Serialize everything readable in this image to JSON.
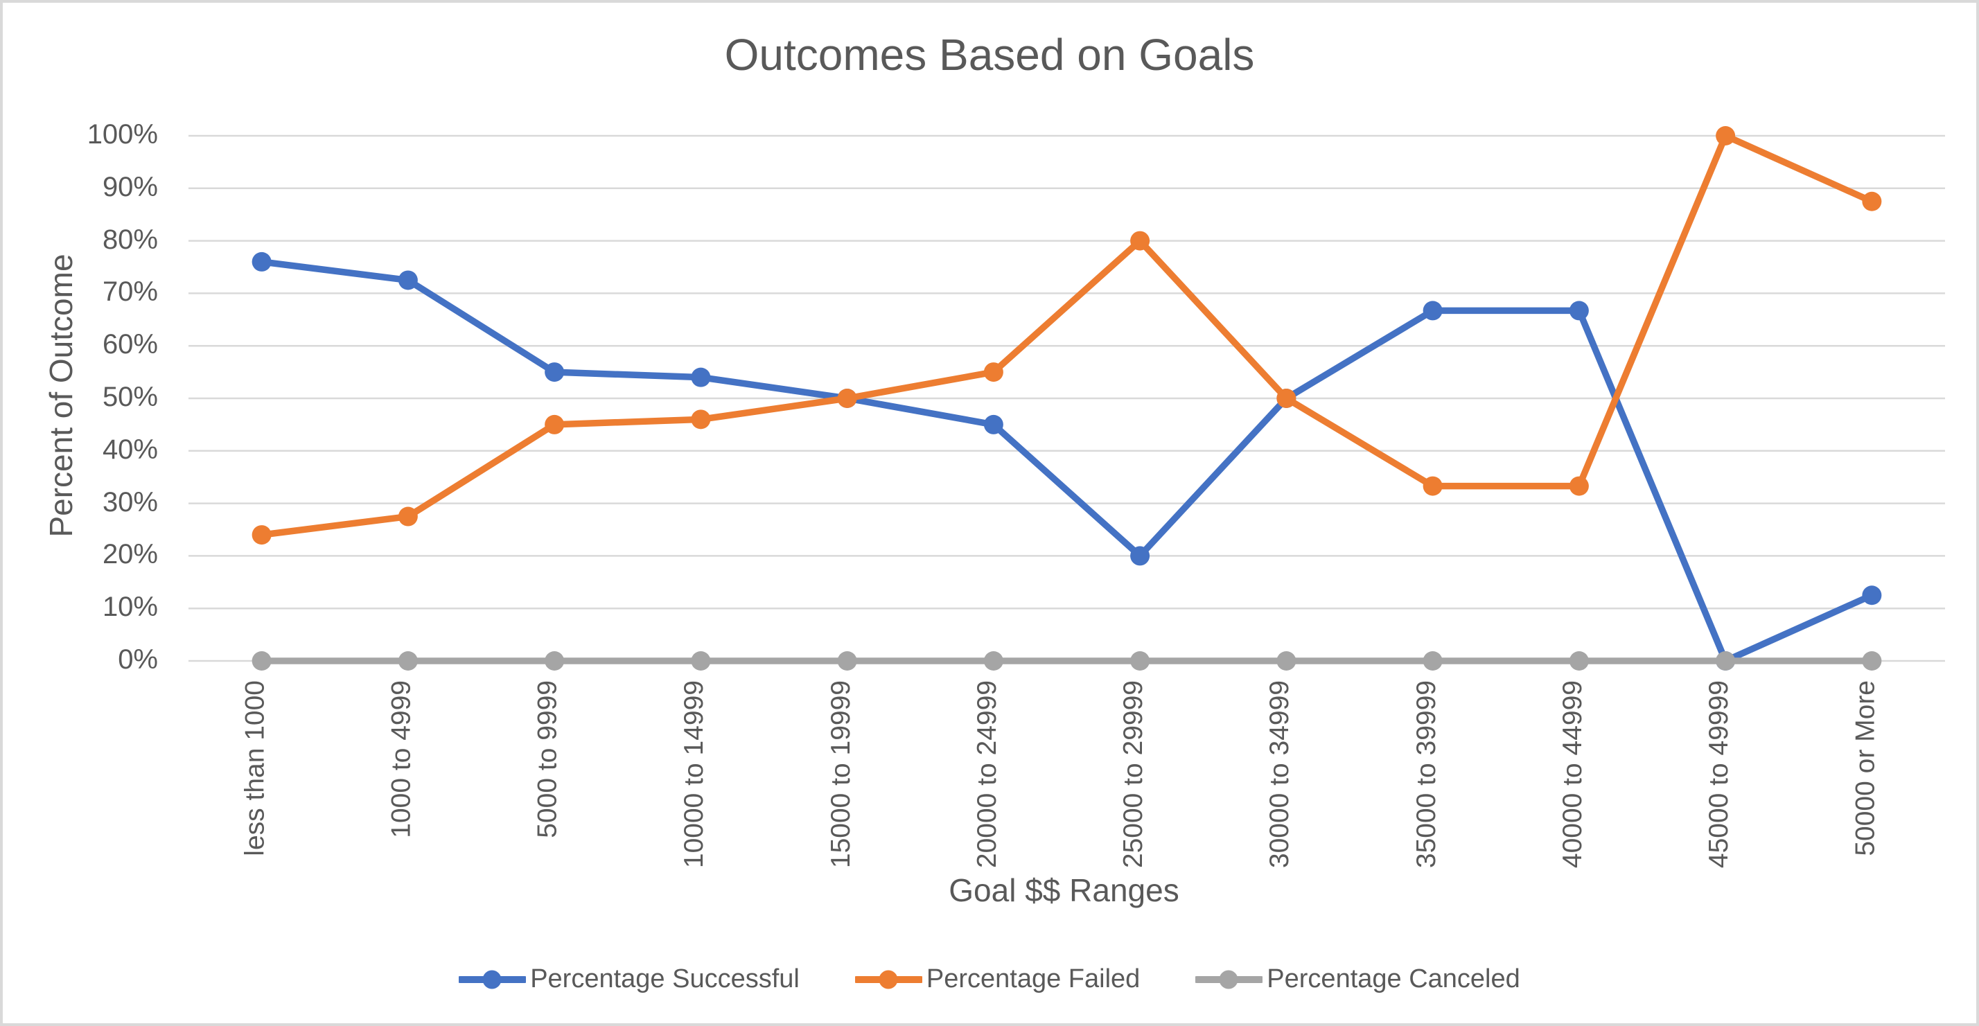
{
  "chart_data": {
    "type": "line",
    "title": "Outcomes Based on Goals",
    "xlabel": "Goal $$ Ranges",
    "ylabel": "Percent of Outcome",
    "categories": [
      "less than 1000",
      "1000 to 4999",
      "5000 to 9999",
      "10000 to 14999",
      "15000 to 19999",
      "20000 to 24999",
      "25000 to 29999",
      "30000 to 34999",
      "35000 to 39999",
      "40000 to 44999",
      "45000 to 49999",
      "50000 or More"
    ],
    "series": [
      {
        "name": "Percentage Successful",
        "color": "#4472C4",
        "values": [
          76,
          72.5,
          55,
          54,
          50,
          45,
          20,
          50,
          66.7,
          66.7,
          0,
          12.5
        ]
      },
      {
        "name": "Percentage Failed",
        "color": "#ED7D31",
        "values": [
          24,
          27.5,
          45,
          46,
          50,
          55,
          80,
          50,
          33.3,
          33.3,
          100,
          87.5
        ]
      },
      {
        "name": "Percentage Canceled",
        "color": "#A5A5A5",
        "values": [
          0,
          0,
          0,
          0,
          0,
          0,
          0,
          0,
          0,
          0,
          0,
          0
        ]
      }
    ],
    "ylim": [
      0,
      100
    ],
    "ytick_labels": [
      "0%",
      "10%",
      "20%",
      "30%",
      "40%",
      "50%",
      "60%",
      "70%",
      "80%",
      "90%",
      "100%"
    ],
    "grid": true,
    "legend_position": "bottom",
    "colors": {
      "gridline": "#D9D9D9",
      "text": "#595959",
      "border": "#D9D9D9",
      "background": "#FFFFFF"
    }
  }
}
